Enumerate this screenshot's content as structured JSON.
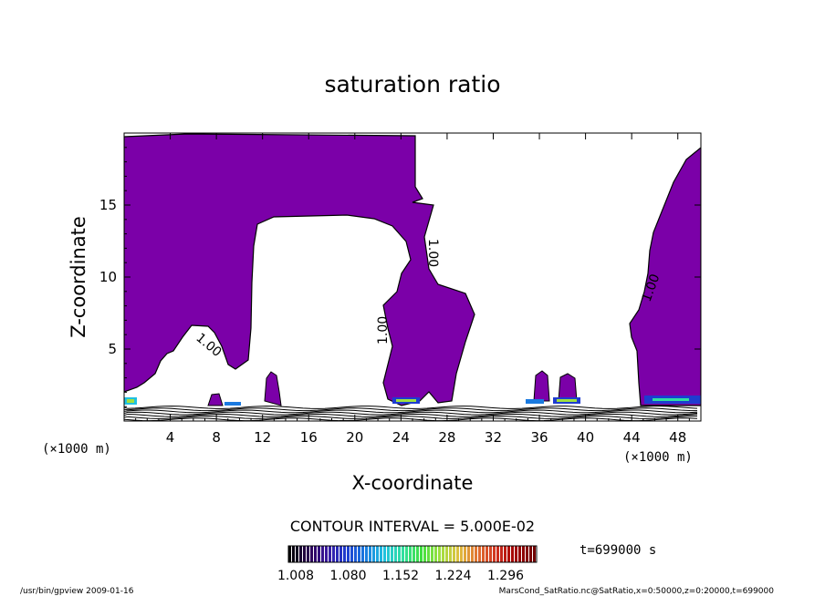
{
  "chart_data": {
    "type": "contour",
    "title": "saturation ratio",
    "xlabel": "X-coordinate",
    "ylabel": "Z-coordinate",
    "x_unit": "(×1000 m)",
    "y_unit": "(×1000 m)",
    "xlim": [
      0,
      50
    ],
    "ylim": [
      0,
      20
    ],
    "x_ticks": [
      4,
      8,
      12,
      16,
      20,
      24,
      28,
      32,
      36,
      40,
      44,
      48
    ],
    "y_ticks": [
      5,
      10,
      15
    ],
    "contour_label": "1.00",
    "contour_interval_text": "CONTOUR INTERVAL = 5.000E-02",
    "time_text": "t=699000 s",
    "colorbar": {
      "ticks": [
        "1.008",
        "1.080",
        "1.152",
        "1.224",
        "1.296"
      ],
      "colors": [
        "#000000",
        "#2a0050",
        "#3a1aa0",
        "#1e3cd0",
        "#1a7ae0",
        "#20c0e0",
        "#30e0a0",
        "#40e040",
        "#a0e040",
        "#e0c040",
        "#e07030",
        "#d03020",
        "#a00000",
        "#700000"
      ]
    },
    "fill_color": "#7b00a8",
    "footer_left": "/usr/bin/gpview   2009-01-16",
    "footer_right": "MarsCond_SatRatio.nc@SatRatio,x=0:50000,z=0:20000,t=699000"
  }
}
